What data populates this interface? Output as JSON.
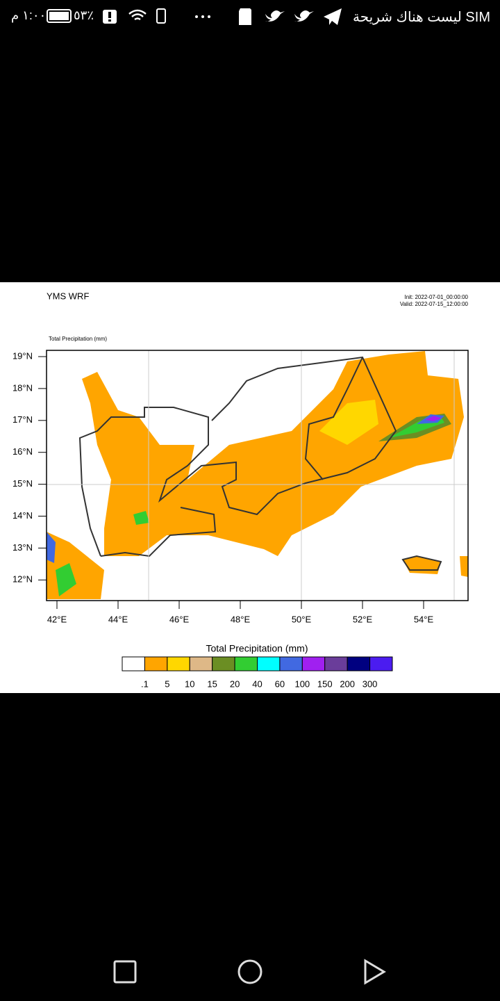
{
  "status_bar": {
    "carrier": "ليست هناك شريحة SIM",
    "battery": "٥٣٪",
    "time": "١:٠٠ م"
  },
  "map": {
    "title": "YMS WRF",
    "init": "Init: 2022-07-01_00:00:00",
    "valid": "Valid: 2022-07-15_12:00:00",
    "subtitle": "Total Precipitation  (mm)",
    "lat_labels": [
      "19°N",
      "18°N",
      "17°N",
      "16°N",
      "15°N",
      "14°N",
      "13°N",
      "12°N"
    ],
    "lon_labels": [
      "42°E",
      "44°E",
      "46°E",
      "48°E",
      "50°E",
      "52°E",
      "54°E"
    ],
    "colorbar": {
      "title": "Total Precipitation  (mm)",
      "colors": [
        "#ffffff",
        "#ffa500",
        "#ffd700",
        "#deb887",
        "#6b8e23",
        "#32cd32",
        "#00ffff",
        "#4169e1",
        "#a020f0",
        "#6a3d9a",
        "#000080",
        "#4b1cf0"
      ],
      "labels": [
        ".1",
        "5",
        "10",
        "15",
        "20",
        "40",
        "60",
        "100",
        "150",
        "200",
        "300"
      ]
    }
  }
}
